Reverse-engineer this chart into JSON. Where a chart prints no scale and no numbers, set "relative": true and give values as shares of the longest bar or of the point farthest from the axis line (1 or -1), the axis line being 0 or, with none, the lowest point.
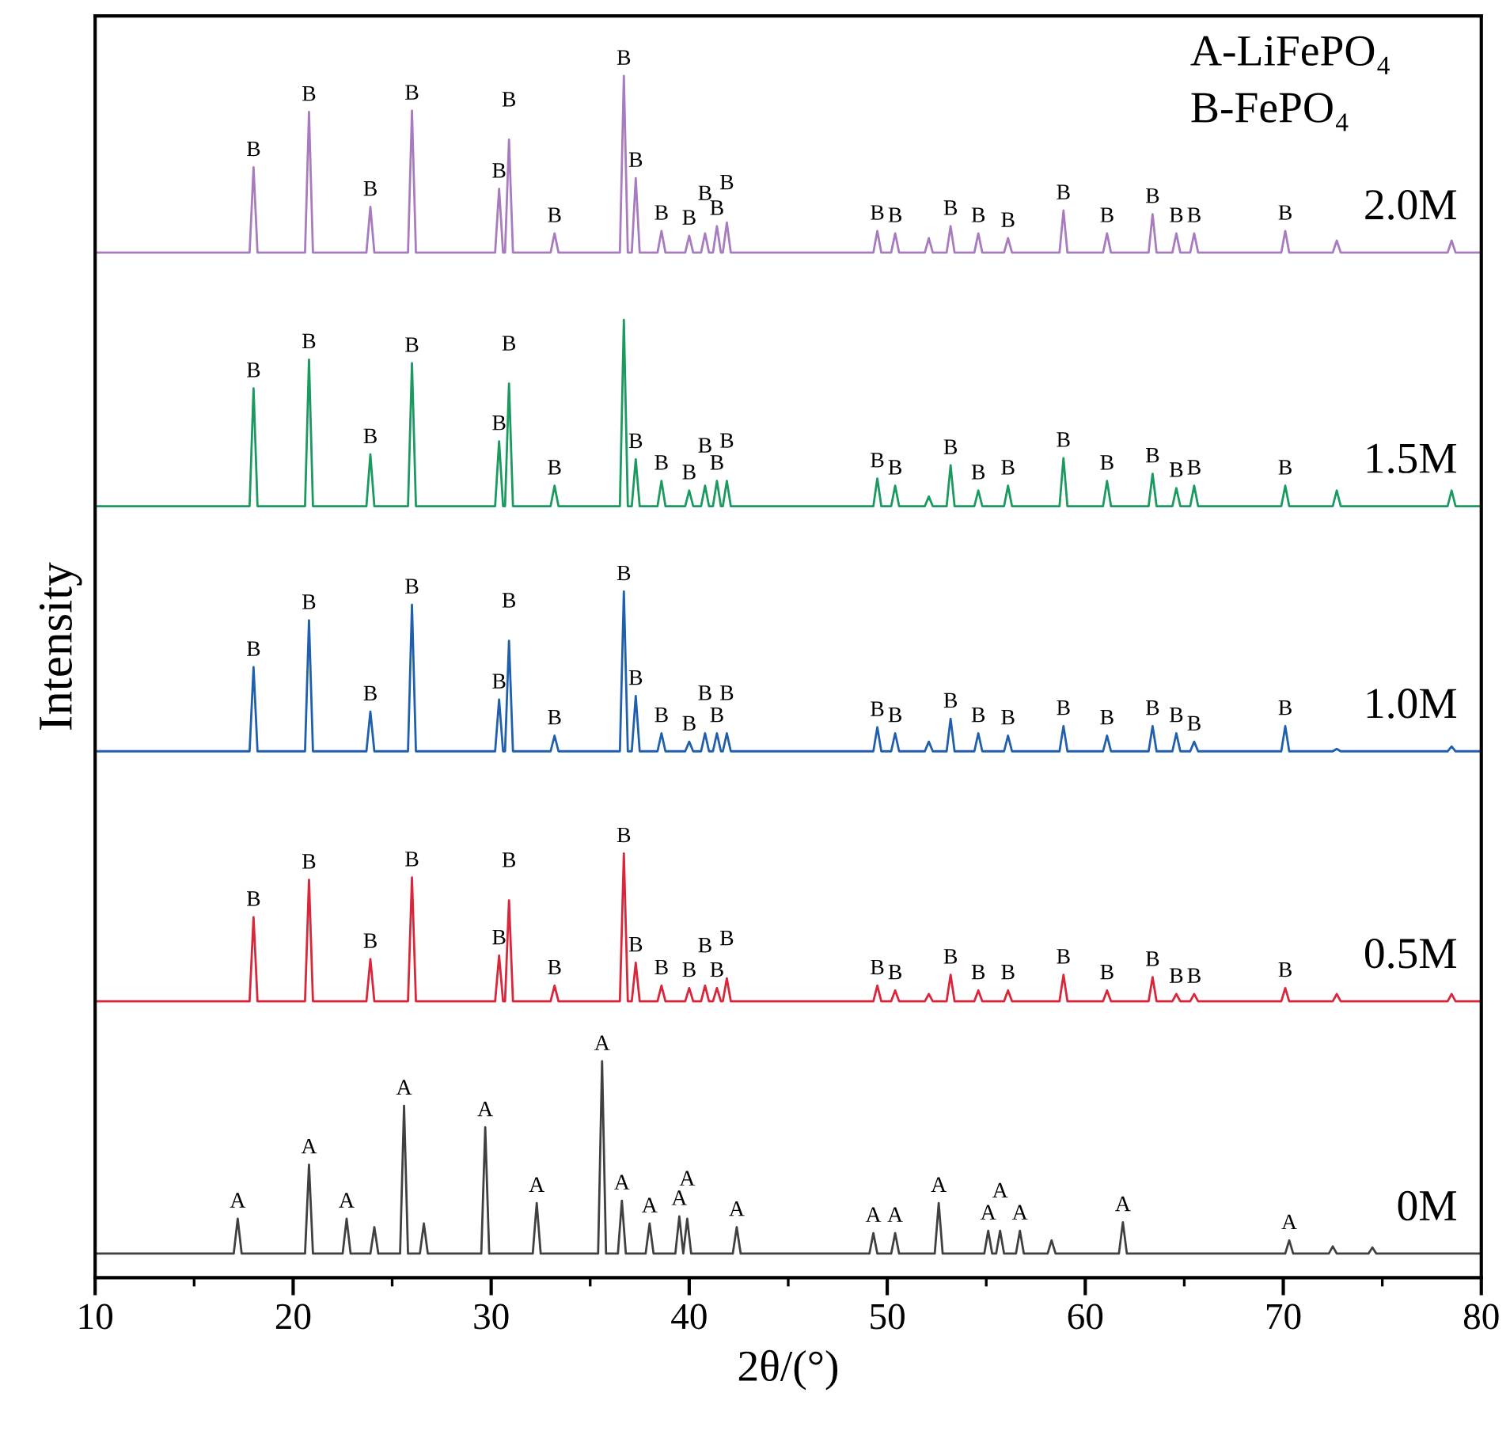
{
  "chart_data": {
    "type": "line",
    "relative": true,
    "xlabel": "2θ/(°)",
    "ylabel": "Intensity",
    "xlim": [
      10,
      80
    ],
    "xticks": [
      10,
      {
        "value": 15,
        "label": null
      },
      20,
      {
        "value": 25,
        "label": null
      },
      30,
      {
        "value": 35,
        "label": null
      },
      40,
      {
        "value": 45,
        "label": null
      },
      50,
      {
        "value": 55,
        "label": null
      },
      60,
      {
        "value": 65,
        "label": null
      },
      70,
      {
        "value": 75,
        "label": null
      },
      80
    ],
    "grid": false,
    "legend": false,
    "marker": "none",
    "line_style": "solid",
    "series": [
      {
        "name": "2.0M",
        "color": "#a87bbf",
        "x": [
          10,
          17.8,
          18.0,
          18.2,
          20.6,
          20.8,
          21.0,
          23.7,
          23.9,
          24.1,
          25.8,
          26.0,
          26.2,
          30.2,
          30.4,
          30.6,
          30.7,
          30.9,
          31.1,
          33.0,
          33.2,
          33.4,
          36.5,
          36.7,
          36.9,
          37.1,
          37.3,
          37.5,
          38.4,
          38.6,
          38.8,
          39.8,
          40.0,
          40.2,
          40.6,
          40.8,
          41.0,
          41.2,
          41.4,
          41.6,
          41.7,
          41.9,
          42.1,
          49.3,
          49.5,
          49.7,
          50.2,
          50.4,
          50.6,
          51.9,
          52.1,
          52.3,
          53.0,
          53.2,
          53.4,
          54.4,
          54.6,
          54.8,
          55.9,
          56.1,
          56.3,
          58.7,
          58.9,
          59.1,
          60.9,
          61.1,
          61.3,
          63.2,
          63.4,
          63.6,
          64.4,
          64.6,
          64.8,
          65.3,
          65.5,
          65.7,
          69.9,
          70.1,
          70.3,
          72.5,
          72.7,
          72.9,
          78.3,
          78.5,
          78.7,
          80
        ],
        "values": [
          0.853,
          0.853,
          0.924,
          0.853,
          0.853,
          0.97,
          0.853,
          0.853,
          0.891,
          0.853,
          0.853,
          0.971,
          0.853,
          0.853,
          0.906,
          0.853,
          0.853,
          0.947,
          0.853,
          0.853,
          0.869,
          0.853,
          0.853,
          1.0,
          0.853,
          0.853,
          0.915,
          0.853,
          0.853,
          0.871,
          0.853,
          0.853,
          0.867,
          0.853,
          0.853,
          0.869,
          0.853,
          0.853,
          0.875,
          0.853,
          0.853,
          0.878,
          0.853,
          0.853,
          0.871,
          0.853,
          0.853,
          0.869,
          0.853,
          0.853,
          0.865,
          0.853,
          0.853,
          0.875,
          0.853,
          0.853,
          0.869,
          0.853,
          0.853,
          0.865,
          0.853,
          0.853,
          0.888,
          0.853,
          0.853,
          0.869,
          0.853,
          0.853,
          0.885,
          0.853,
          0.853,
          0.869,
          0.853,
          0.853,
          0.869,
          0.853,
          0.853,
          0.871,
          0.853,
          0.853,
          0.863,
          0.853,
          0.853,
          0.863,
          0.853,
          0.853
        ]
      },
      {
        "name": "1.5M",
        "color": "#1a9a5e",
        "x": [
          10,
          17.8,
          18.0,
          18.2,
          20.6,
          20.8,
          21.0,
          23.7,
          23.9,
          24.1,
          25.8,
          26.0,
          26.2,
          30.2,
          30.4,
          30.6,
          30.7,
          30.9,
          31.1,
          33.0,
          33.2,
          33.4,
          36.5,
          36.7,
          36.9,
          37.1,
          37.3,
          37.5,
          38.4,
          38.6,
          38.8,
          39.8,
          40.0,
          40.2,
          40.6,
          40.8,
          41.0,
          41.2,
          41.4,
          41.6,
          41.7,
          41.9,
          42.1,
          49.3,
          49.5,
          49.7,
          50.2,
          50.4,
          50.6,
          51.9,
          52.1,
          52.3,
          53.0,
          53.2,
          53.4,
          54.4,
          54.6,
          54.8,
          55.9,
          56.1,
          56.3,
          58.7,
          58.9,
          59.1,
          60.9,
          61.1,
          61.3,
          63.2,
          63.4,
          63.6,
          64.4,
          64.6,
          64.8,
          65.3,
          65.5,
          65.7,
          69.9,
          70.1,
          70.3,
          72.5,
          72.7,
          72.9,
          78.3,
          78.5,
          78.7,
          80
        ],
        "values": [
          0.642,
          0.642,
          0.74,
          0.642,
          0.642,
          0.764,
          0.642,
          0.642,
          0.685,
          0.642,
          0.642,
          0.761,
          0.642,
          0.642,
          0.696,
          0.642,
          0.642,
          0.744,
          0.642,
          0.642,
          0.659,
          0.642,
          0.642,
          0.797,
          0.642,
          0.642,
          0.681,
          0.642,
          0.642,
          0.663,
          0.642,
          0.642,
          0.655,
          0.642,
          0.642,
          0.659,
          0.642,
          0.642,
          0.663,
          0.642,
          0.642,
          0.663,
          0.642,
          0.642,
          0.665,
          0.642,
          0.642,
          0.659,
          0.642,
          0.642,
          0.65,
          0.642,
          0.642,
          0.676,
          0.642,
          0.642,
          0.655,
          0.642,
          0.642,
          0.659,
          0.642,
          0.642,
          0.682,
          0.642,
          0.642,
          0.663,
          0.642,
          0.642,
          0.669,
          0.642,
          0.642,
          0.657,
          0.642,
          0.642,
          0.659,
          0.642,
          0.642,
          0.659,
          0.642,
          0.642,
          0.655,
          0.642,
          0.642,
          0.655,
          0.642,
          0.642
        ]
      },
      {
        "name": "1.0M",
        "color": "#1f5fae",
        "x": [
          10,
          17.8,
          18.0,
          18.2,
          20.6,
          20.8,
          21.0,
          23.7,
          23.9,
          24.1,
          25.8,
          26.0,
          26.2,
          30.2,
          30.4,
          30.6,
          30.7,
          30.9,
          31.1,
          33.0,
          33.2,
          33.4,
          36.5,
          36.7,
          36.9,
          37.1,
          37.3,
          37.5,
          38.4,
          38.6,
          38.8,
          39.8,
          40.0,
          40.2,
          40.6,
          40.8,
          41.0,
          41.2,
          41.4,
          41.6,
          41.7,
          41.9,
          42.1,
          49.3,
          49.5,
          49.7,
          50.2,
          50.4,
          50.6,
          51.9,
          52.1,
          52.3,
          53.0,
          53.2,
          53.4,
          54.4,
          54.6,
          54.8,
          55.9,
          56.1,
          56.3,
          58.7,
          58.9,
          59.1,
          60.9,
          61.1,
          61.3,
          63.2,
          63.4,
          63.6,
          64.4,
          64.6,
          64.8,
          65.3,
          65.5,
          65.7,
          69.9,
          70.1,
          70.3,
          72.5,
          72.7,
          72.9,
          78.3,
          78.5,
          78.7,
          80
        ],
        "values": [
          0.438,
          0.438,
          0.508,
          0.438,
          0.438,
          0.547,
          0.438,
          0.438,
          0.471,
          0.438,
          0.438,
          0.56,
          0.438,
          0.438,
          0.481,
          0.438,
          0.438,
          0.53,
          0.438,
          0.438,
          0.451,
          0.438,
          0.438,
          0.571,
          0.438,
          0.438,
          0.484,
          0.438,
          0.438,
          0.453,
          0.438,
          0.438,
          0.446,
          0.438,
          0.438,
          0.453,
          0.438,
          0.438,
          0.453,
          0.438,
          0.438,
          0.453,
          0.438,
          0.438,
          0.458,
          0.438,
          0.438,
          0.453,
          0.438,
          0.438,
          0.446,
          0.438,
          0.438,
          0.465,
          0.438,
          0.438,
          0.453,
          0.438,
          0.438,
          0.451,
          0.438,
          0.438,
          0.459,
          0.438,
          0.438,
          0.451,
          0.438,
          0.438,
          0.459,
          0.438,
          0.438,
          0.453,
          0.438,
          0.438,
          0.446,
          0.438,
          0.438,
          0.459,
          0.438,
          0.438,
          0.44,
          0.438,
          0.438,
          0.442,
          0.438,
          0.438
        ]
      },
      {
        "name": "0.5M",
        "color": "#d9263b",
        "x": [
          10,
          17.8,
          18.0,
          18.2,
          20.6,
          20.8,
          21.0,
          23.7,
          23.9,
          24.1,
          25.8,
          26.0,
          26.2,
          30.2,
          30.4,
          30.6,
          30.7,
          30.9,
          31.1,
          33.0,
          33.2,
          33.4,
          36.5,
          36.7,
          36.9,
          37.1,
          37.3,
          37.5,
          38.4,
          38.6,
          38.8,
          39.8,
          40.0,
          40.2,
          40.6,
          40.8,
          41.0,
          41.2,
          41.4,
          41.6,
          41.7,
          41.9,
          42.1,
          49.3,
          49.5,
          49.7,
          50.2,
          50.4,
          50.6,
          51.9,
          52.1,
          52.3,
          53.0,
          53.2,
          53.4,
          54.4,
          54.6,
          54.8,
          55.9,
          56.1,
          56.3,
          58.7,
          58.9,
          59.1,
          60.9,
          61.1,
          61.3,
          63.2,
          63.4,
          63.6,
          64.4,
          64.6,
          64.8,
          65.3,
          65.5,
          65.7,
          69.9,
          70.1,
          70.3,
          72.5,
          72.7,
          72.9,
          78.3,
          78.5,
          78.7,
          80
        ],
        "values": [
          0.23,
          0.23,
          0.3,
          0.23,
          0.23,
          0.331,
          0.23,
          0.23,
          0.265,
          0.23,
          0.23,
          0.333,
          0.23,
          0.23,
          0.268,
          0.23,
          0.23,
          0.314,
          0.23,
          0.23,
          0.243,
          0.23,
          0.23,
          0.353,
          0.23,
          0.23,
          0.262,
          0.23,
          0.23,
          0.243,
          0.23,
          0.23,
          0.241,
          0.23,
          0.23,
          0.243,
          0.23,
          0.23,
          0.241,
          0.23,
          0.23,
          0.249,
          0.23,
          0.23,
          0.243,
          0.23,
          0.23,
          0.239,
          0.23,
          0.23,
          0.236,
          0.23,
          0.23,
          0.252,
          0.23,
          0.23,
          0.239,
          0.23,
          0.23,
          0.239,
          0.23,
          0.23,
          0.252,
          0.23,
          0.23,
          0.239,
          0.23,
          0.23,
          0.25,
          0.23,
          0.23,
          0.236,
          0.23,
          0.23,
          0.236,
          0.23,
          0.23,
          0.241,
          0.23,
          0.23,
          0.236,
          0.23,
          0.23,
          0.236,
          0.23,
          0.23
        ]
      },
      {
        "name": "0M",
        "color": "#404040",
        "x": [
          10,
          17.0,
          17.2,
          17.4,
          20.6,
          20.8,
          21.0,
          22.5,
          22.7,
          22.9,
          23.9,
          24.1,
          24.3,
          25.4,
          25.6,
          25.8,
          26.4,
          26.6,
          26.8,
          29.5,
          29.7,
          29.9,
          32.1,
          32.3,
          32.5,
          35.4,
          35.6,
          35.8,
          36.4,
          36.6,
          36.8,
          37.8,
          38.0,
          38.2,
          39.3,
          39.5,
          39.7,
          39.7,
          39.9,
          40.1,
          42.2,
          42.4,
          42.6,
          49.1,
          49.3,
          49.5,
          50.2,
          50.4,
          50.6,
          52.4,
          52.6,
          52.8,
          54.9,
          55.1,
          55.3,
          55.5,
          55.7,
          55.9,
          56.5,
          56.7,
          56.9,
          58.1,
          58.3,
          58.5,
          61.7,
          61.9,
          62.1,
          70.1,
          70.3,
          70.5,
          72.3,
          72.5,
          72.7,
          74.3,
          74.5,
          74.7,
          80
        ],
        "values": [
          0.02,
          0.02,
          0.049,
          0.02,
          0.02,
          0.094,
          0.02,
          0.02,
          0.049,
          0.02,
          0.02,
          0.042,
          0.02,
          0.02,
          0.143,
          0.02,
          0.02,
          0.045,
          0.02,
          0.02,
          0.125,
          0.02,
          0.02,
          0.062,
          0.02,
          0.02,
          0.18,
          0.02,
          0.02,
          0.064,
          0.02,
          0.02,
          0.045,
          0.02,
          0.02,
          0.051,
          0.02,
          0.02,
          0.049,
          0.02,
          0.02,
          0.042,
          0.02,
          0.02,
          0.037,
          0.02,
          0.02,
          0.037,
          0.02,
          0.02,
          0.062,
          0.02,
          0.02,
          0.039,
          0.02,
          0.02,
          0.039,
          0.02,
          0.02,
          0.039,
          0.02,
          0.02,
          0.031,
          0.02,
          0.02,
          0.046,
          0.02,
          0.02,
          0.031,
          0.02,
          0.02,
          0.026,
          0.02,
          0.02,
          0.025,
          0.02,
          0.02
        ]
      }
    ],
    "annotations": [
      "A-LiFePO₄",
      "B-FePO₄",
      {
        "text": "B",
        "x": 18.0,
        "y": 0.924
      },
      {
        "text": "B",
        "x": 20.8,
        "y": 0.97
      },
      {
        "text": "B",
        "x": 23.9,
        "y": 0.891
      },
      {
        "text": "B",
        "x": 26.0,
        "y": 0.971
      },
      {
        "text": "B",
        "x": 30.4,
        "y": 0.906
      },
      {
        "text": "B",
        "x": 30.9,
        "y": 0.947
      },
      {
        "text": "B",
        "x": 33.2,
        "y": 0.869
      },
      {
        "text": "B",
        "x": 36.7,
        "y": 1.0
      },
      {
        "text": "B",
        "x": 37.3,
        "y": 0.915
      },
      {
        "text": "B",
        "x": 38.6,
        "y": 0.871
      },
      {
        "text": "B",
        "x": 40.0,
        "y": 0.867
      },
      {
        "text": "B",
        "x": 40.8,
        "y": 0.869
      },
      {
        "text": "B",
        "x": 41.4,
        "y": 0.875
      },
      {
        "text": "B",
        "x": 41.9,
        "y": 0.878
      },
      {
        "text": "B",
        "x": 49.5,
        "y": 0.871
      },
      {
        "text": "B",
        "x": 50.4,
        "y": 0.869
      },
      {
        "text": "B",
        "x": 53.2,
        "y": 0.875
      },
      {
        "text": "B",
        "x": 54.6,
        "y": 0.869
      },
      {
        "text": "B",
        "x": 56.1,
        "y": 0.865
      },
      {
        "text": "B",
        "x": 58.9,
        "y": 0.888
      },
      {
        "text": "B",
        "x": 61.1,
        "y": 0.869
      },
      {
        "text": "B",
        "x": 63.4,
        "y": 0.885
      },
      {
        "text": "B",
        "x": 64.6,
        "y": 0.869
      },
      {
        "text": "B",
        "x": 65.5,
        "y": 0.869
      },
      {
        "text": "B",
        "x": 70.1,
        "y": 0.871
      },
      {
        "text": "B",
        "x": 18.0,
        "y": 0.74
      },
      {
        "text": "B",
        "x": 20.8,
        "y": 0.764
      },
      {
        "text": "B",
        "x": 23.9,
        "y": 0.685
      },
      {
        "text": "B",
        "x": 26.0,
        "y": 0.761
      },
      {
        "text": "B",
        "x": 30.4,
        "y": 0.696
      },
      {
        "text": "B",
        "x": 30.9,
        "y": 0.744
      },
      {
        "text": "B",
        "x": 33.2,
        "y": 0.659
      },
      {
        "text": "B",
        "x": 37.3,
        "y": 0.681
      },
      {
        "text": "B",
        "x": 38.6,
        "y": 0.663
      },
      {
        "text": "B",
        "x": 40.0,
        "y": 0.655
      },
      {
        "text": "B",
        "x": 40.8,
        "y": 0.659
      },
      {
        "text": "B",
        "x": 41.4,
        "y": 0.663
      },
      {
        "text": "B",
        "x": 41.9,
        "y": 0.663
      },
      {
        "text": "B",
        "x": 49.5,
        "y": 0.665
      },
      {
        "text": "B",
        "x": 50.4,
        "y": 0.659
      },
      {
        "text": "B",
        "x": 53.2,
        "y": 0.676
      },
      {
        "text": "B",
        "x": 54.6,
        "y": 0.655
      },
      {
        "text": "B",
        "x": 56.1,
        "y": 0.659
      },
      {
        "text": "B",
        "x": 58.9,
        "y": 0.682
      },
      {
        "text": "B",
        "x": 61.1,
        "y": 0.663
      },
      {
        "text": "B",
        "x": 63.4,
        "y": 0.669
      },
      {
        "text": "B",
        "x": 64.6,
        "y": 0.657
      },
      {
        "text": "B",
        "x": 65.5,
        "y": 0.659
      },
      {
        "text": "B",
        "x": 70.1,
        "y": 0.659
      },
      {
        "text": "B",
        "x": 18.0,
        "y": 0.508
      },
      {
        "text": "B",
        "x": 20.8,
        "y": 0.547
      },
      {
        "text": "B",
        "x": 23.9,
        "y": 0.471
      },
      {
        "text": "B",
        "x": 26.0,
        "y": 0.56
      },
      {
        "text": "B",
        "x": 30.4,
        "y": 0.481
      },
      {
        "text": "B",
        "x": 30.9,
        "y": 0.53
      },
      {
        "text": "B",
        "x": 33.2,
        "y": 0.451
      },
      {
        "text": "B",
        "x": 36.7,
        "y": 0.571
      },
      {
        "text": "B",
        "x": 37.3,
        "y": 0.484
      },
      {
        "text": "B",
        "x": 38.6,
        "y": 0.453
      },
      {
        "text": "B",
        "x": 40.0,
        "y": 0.446
      },
      {
        "text": "B",
        "x": 40.8,
        "y": 0.453
      },
      {
        "text": "B",
        "x": 41.4,
        "y": 0.453
      },
      {
        "text": "B",
        "x": 41.9,
        "y": 0.453
      },
      {
        "text": "B",
        "x": 49.5,
        "y": 0.458
      },
      {
        "text": "B",
        "x": 50.4,
        "y": 0.453
      },
      {
        "text": "B",
        "x": 53.2,
        "y": 0.465
      },
      {
        "text": "B",
        "x": 54.6,
        "y": 0.453
      },
      {
        "text": "B",
        "x": 56.1,
        "y": 0.451
      },
      {
        "text": "B",
        "x": 58.9,
        "y": 0.459
      },
      {
        "text": "B",
        "x": 61.1,
        "y": 0.451
      },
      {
        "text": "B",
        "x": 63.4,
        "y": 0.459
      },
      {
        "text": "B",
        "x": 64.6,
        "y": 0.453
      },
      {
        "text": "B",
        "x": 65.5,
        "y": 0.446
      },
      {
        "text": "B",
        "x": 70.1,
        "y": 0.459
      },
      {
        "text": "B",
        "x": 18.0,
        "y": 0.3
      },
      {
        "text": "B",
        "x": 20.8,
        "y": 0.331
      },
      {
        "text": "B",
        "x": 23.9,
        "y": 0.265
      },
      {
        "text": "B",
        "x": 26.0,
        "y": 0.333
      },
      {
        "text": "B",
        "x": 30.4,
        "y": 0.268
      },
      {
        "text": "B",
        "x": 30.9,
        "y": 0.314
      },
      {
        "text": "B",
        "x": 33.2,
        "y": 0.243
      },
      {
        "text": "B",
        "x": 36.7,
        "y": 0.353
      },
      {
        "text": "B",
        "x": 37.3,
        "y": 0.262
      },
      {
        "text": "B",
        "x": 38.6,
        "y": 0.243
      },
      {
        "text": "B",
        "x": 40.0,
        "y": 0.241
      },
      {
        "text": "B",
        "x": 40.8,
        "y": 0.243
      },
      {
        "text": "B",
        "x": 41.4,
        "y": 0.241
      },
      {
        "text": "B",
        "x": 41.9,
        "y": 0.249
      },
      {
        "text": "B",
        "x": 49.5,
        "y": 0.243
      },
      {
        "text": "B",
        "x": 50.4,
        "y": 0.239
      },
      {
        "text": "B",
        "x": 53.2,
        "y": 0.252
      },
      {
        "text": "B",
        "x": 54.6,
        "y": 0.239
      },
      {
        "text": "B",
        "x": 56.1,
        "y": 0.239
      },
      {
        "text": "B",
        "x": 58.9,
        "y": 0.252
      },
      {
        "text": "B",
        "x": 61.1,
        "y": 0.239
      },
      {
        "text": "B",
        "x": 63.4,
        "y": 0.25
      },
      {
        "text": "B",
        "x": 64.6,
        "y": 0.236
      },
      {
        "text": "B",
        "x": 65.5,
        "y": 0.236
      },
      {
        "text": "B",
        "x": 70.1,
        "y": 0.241
      },
      {
        "text": "A",
        "x": 17.2,
        "y": 0.049
      },
      {
        "text": "A",
        "x": 20.8,
        "y": 0.094
      },
      {
        "text": "A",
        "x": 22.7,
        "y": 0.049
      },
      {
        "text": "A",
        "x": 25.6,
        "y": 0.143
      },
      {
        "text": "A",
        "x": 29.7,
        "y": 0.125
      },
      {
        "text": "A",
        "x": 32.3,
        "y": 0.062
      },
      {
        "text": "A",
        "x": 35.6,
        "y": 0.18
      },
      {
        "text": "A",
        "x": 36.6,
        "y": 0.064
      },
      {
        "text": "A",
        "x": 38.0,
        "y": 0.045
      },
      {
        "text": "A",
        "x": 39.5,
        "y": 0.051
      },
      {
        "text": "A",
        "x": 39.9,
        "y": 0.049
      },
      {
        "text": "A",
        "x": 42.4,
        "y": 0.042
      },
      {
        "text": "A",
        "x": 49.3,
        "y": 0.037
      },
      {
        "text": "A",
        "x": 50.4,
        "y": 0.037
      },
      {
        "text": "A",
        "x": 52.6,
        "y": 0.062
      },
      {
        "text": "A",
        "x": 55.1,
        "y": 0.039
      },
      {
        "text": "A",
        "x": 55.7,
        "y": 0.039
      },
      {
        "text": "A",
        "x": 56.7,
        "y": 0.039
      },
      {
        "text": "A",
        "x": 61.9,
        "y": 0.046
      },
      {
        "text": "A",
        "x": 70.3,
        "y": 0.031
      }
    ]
  }
}
